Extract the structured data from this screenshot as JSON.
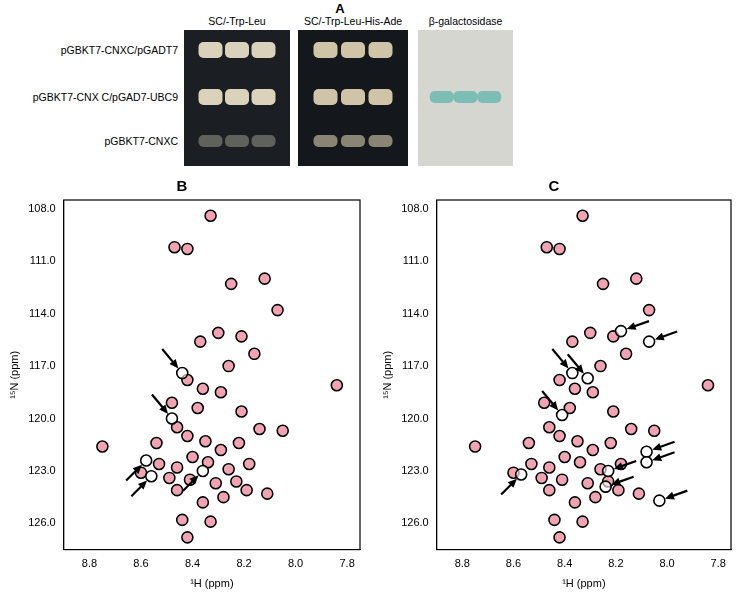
{
  "panel_a": {
    "label": "A",
    "columns": [
      "SC/-Trp-Leu",
      "SC/-Trp-Leu-His-Ade",
      "β-galactosidase"
    ],
    "rows": [
      {
        "label": "pGBKT7-CNXC/pGADT7",
        "spots": [
          3,
          3,
          0
        ]
      },
      {
        "label": "pGBKT7-CNX C/pGAD7-UBC9",
        "spots": [
          3,
          3,
          3
        ]
      },
      {
        "label": "pGBKT7-CNXC",
        "spots": [
          3,
          3,
          0
        ]
      }
    ]
  },
  "chart_data": [
    {
      "type": "scatter",
      "title": "B",
      "xlabel": "¹H (ppm)",
      "ylabel": "¹⁵N (ppm)",
      "xlim": [
        8.9,
        7.75
      ],
      "ylim": [
        127.5,
        107.5
      ],
      "xticks": [
        8.8,
        8.6,
        8.4,
        8.2,
        {
          "value": 8,
          "label": "8.0"
        },
        7.8
      ],
      "yticks": [
        {
          "value": 108,
          "label": "108.0"
        },
        {
          "value": 111,
          "label": "111.0"
        },
        {
          "value": 114,
          "label": "114.0"
        },
        {
          "value": 117,
          "label": "117.0"
        },
        {
          "value": 120,
          "label": "120.0"
        },
        {
          "value": 123,
          "label": "123.0"
        },
        {
          "value": 126,
          "label": "126.0"
        }
      ],
      "grid": false,
      "series": [
        {
          "color": "#000000",
          "marker": "circle",
          "x": [
            8.33,
            8.47,
            8.42,
            8.12,
            8.25,
            8.07,
            8.3,
            8.21,
            8.37,
            8.16,
            8.26,
            8.42,
            8.36,
            8.29,
            7.84,
            8.48,
            8.38,
            8.21,
            8.05,
            8.14,
            8.75,
            8.54,
            8.46,
            8.42,
            8.35,
            8.29,
            8.22,
            8.18,
            8.53,
            8.46,
            8.4,
            8.34,
            8.26,
            8.6,
            8.49,
            8.41,
            8.31,
            8.23,
            8.46,
            8.28,
            8.19,
            8.11,
            8.44,
            8.33,
            8.42,
            8.36,
            8.44,
            8.48,
            8.58,
            8.56,
            8.36
          ],
          "values": [
            108.4,
            110.2,
            110.3,
            112.0,
            112.3,
            113.8,
            115.1,
            115.3,
            115.6,
            116.3,
            117.0,
            117.8,
            118.3,
            118.5,
            118.1,
            119.1,
            119.4,
            119.6,
            120.7,
            120.6,
            121.6,
            121.4,
            120.5,
            121.0,
            121.3,
            121.8,
            121.4,
            122.6,
            122.6,
            122.8,
            122.2,
            122.5,
            122.9,
            123.1,
            123.4,
            123.5,
            123.7,
            123.6,
            124.1,
            124.5,
            124.1,
            124.3,
            125.8,
            125.9,
            126.8,
            124.8,
            117.4,
            120.0,
            122.4,
            123.3,
            123.0
          ]
        },
        {
          "color": "#e3173e",
          "marker": "circle",
          "x": [
            8.33,
            8.47,
            8.42,
            8.12,
            8.25,
            8.07,
            8.3,
            8.21,
            8.37,
            8.16,
            8.26,
            8.42,
            8.36,
            8.29,
            7.84,
            8.48,
            8.38,
            8.21,
            8.05,
            8.14,
            8.75,
            8.54,
            8.46,
            8.42,
            8.35,
            8.29,
            8.22,
            8.18,
            8.53,
            8.46,
            8.4,
            8.34,
            8.26,
            8.6,
            8.49,
            8.41,
            8.31,
            8.23,
            8.46,
            8.28,
            8.19,
            8.11,
            8.44,
            8.33,
            8.42,
            8.36
          ],
          "values": [
            108.4,
            110.2,
            110.3,
            112.0,
            112.3,
            113.8,
            115.1,
            115.3,
            115.6,
            116.3,
            117.0,
            117.8,
            118.3,
            118.5,
            118.1,
            119.1,
            119.4,
            119.6,
            120.7,
            120.6,
            121.6,
            121.4,
            120.5,
            121.0,
            121.3,
            121.8,
            121.4,
            122.6,
            122.6,
            122.8,
            122.2,
            122.5,
            122.9,
            123.1,
            123.4,
            123.5,
            123.7,
            123.6,
            124.1,
            124.5,
            124.1,
            124.3,
            125.8,
            125.9,
            126.8,
            124.8
          ]
        }
      ],
      "arrows": [
        [
          8.44,
          117.4
        ],
        [
          8.48,
          120.0
        ],
        [
          8.58,
          122.4
        ],
        [
          8.56,
          123.3
        ],
        [
          8.36,
          123.0
        ]
      ]
    },
    {
      "type": "scatter",
      "title": "C",
      "xlabel": "¹H (ppm)",
      "ylabel": "¹⁵N (ppm)",
      "xlim": [
        8.9,
        7.75
      ],
      "ylim": [
        127.5,
        107.5
      ],
      "xticks": [
        8.8,
        8.6,
        8.4,
        8.2,
        {
          "value": 8,
          "label": "8.0"
        },
        7.8
      ],
      "yticks": [
        {
          "value": 108,
          "label": "108.0"
        },
        {
          "value": 111,
          "label": "111.0"
        },
        {
          "value": 114,
          "label": "114.0"
        },
        {
          "value": 117,
          "label": "117.0"
        },
        {
          "value": 120,
          "label": "120.0"
        },
        {
          "value": 123,
          "label": "123.0"
        },
        {
          "value": 126,
          "label": "126.0"
        }
      ],
      "grid": false,
      "series": [
        {
          "color": "#000000",
          "marker": "circle",
          "x": [
            8.33,
            8.47,
            8.42,
            8.12,
            8.25,
            8.07,
            8.3,
            8.21,
            8.37,
            8.16,
            8.26,
            8.42,
            8.36,
            8.29,
            7.84,
            8.48,
            8.38,
            8.21,
            8.05,
            8.14,
            8.75,
            8.54,
            8.46,
            8.42,
            8.35,
            8.29,
            8.22,
            8.18,
            8.53,
            8.46,
            8.4,
            8.34,
            8.26,
            8.6,
            8.49,
            8.41,
            8.31,
            8.23,
            8.46,
            8.28,
            8.19,
            8.11,
            8.44,
            8.33,
            8.42,
            8.36,
            8.18,
            8.07,
            8.37,
            8.31,
            8.41,
            8.08,
            8.08,
            8.23,
            8.57,
            8.03,
            8.24
          ],
          "values": [
            108.4,
            110.2,
            110.3,
            112.0,
            112.3,
            113.8,
            115.1,
            115.3,
            115.6,
            116.3,
            117.0,
            117.8,
            118.3,
            118.5,
            118.1,
            119.1,
            119.4,
            119.6,
            120.7,
            120.6,
            121.6,
            121.4,
            120.5,
            121.0,
            121.3,
            121.8,
            121.4,
            122.6,
            122.6,
            122.8,
            122.2,
            122.5,
            122.9,
            123.1,
            123.4,
            123.5,
            123.7,
            123.6,
            124.1,
            124.5,
            124.1,
            124.3,
            125.8,
            125.9,
            126.8,
            124.8,
            115.0,
            115.6,
            117.4,
            117.7,
            119.8,
            121.9,
            122.5,
            123.0,
            123.2,
            124.7,
            123.9
          ]
        },
        {
          "color": "#e3173e",
          "marker": "circle",
          "x": [
            8.33,
            8.47,
            8.42,
            8.12,
            8.25,
            8.07,
            8.3,
            8.21,
            8.37,
            8.16,
            8.26,
            8.42,
            8.36,
            8.29,
            7.84,
            8.48,
            8.38,
            8.21,
            8.05,
            8.14,
            8.75,
            8.54,
            8.46,
            8.42,
            8.35,
            8.29,
            8.22,
            8.18,
            8.53,
            8.46,
            8.4,
            8.34,
            8.26,
            8.6,
            8.49,
            8.41,
            8.31,
            8.23,
            8.46,
            8.28,
            8.19,
            8.11,
            8.44,
            8.33,
            8.42,
            8.36
          ],
          "values": [
            108.4,
            110.2,
            110.3,
            112.0,
            112.3,
            113.8,
            115.1,
            115.3,
            115.6,
            116.3,
            117.0,
            117.8,
            118.3,
            118.5,
            118.1,
            119.1,
            119.4,
            119.6,
            120.7,
            120.6,
            121.6,
            121.4,
            120.5,
            121.0,
            121.3,
            121.8,
            121.4,
            122.6,
            122.6,
            122.8,
            122.2,
            122.5,
            122.9,
            123.1,
            123.4,
            123.5,
            123.7,
            123.6,
            124.1,
            124.5,
            124.1,
            124.3,
            125.8,
            125.9,
            126.8,
            124.8
          ]
        }
      ],
      "arrows": [
        [
          8.18,
          115.0
        ],
        [
          8.07,
          115.6
        ],
        [
          8.37,
          117.4
        ],
        [
          8.31,
          117.7
        ],
        [
          8.41,
          119.8
        ],
        [
          8.08,
          121.9
        ],
        [
          8.08,
          122.5
        ],
        [
          8.23,
          123.0
        ],
        [
          8.57,
          123.2
        ],
        [
          8.03,
          124.7
        ],
        [
          8.24,
          123.9
        ]
      ]
    }
  ]
}
